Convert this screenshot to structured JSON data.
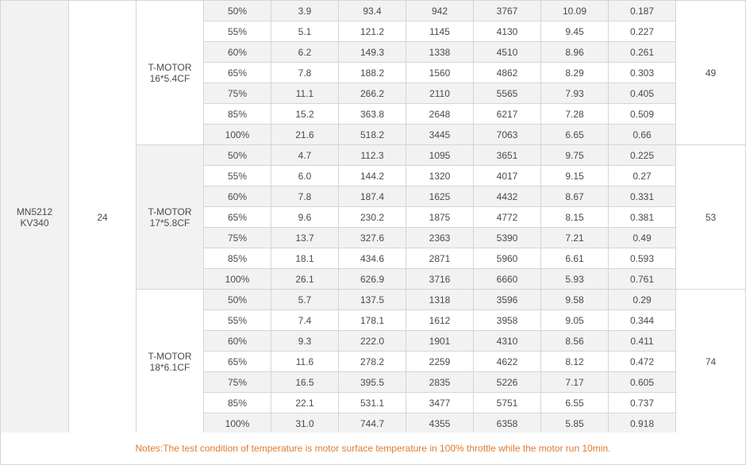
{
  "motor": {
    "name_line1": "MN5212",
    "name_line2": "KV340",
    "voltage": "24"
  },
  "props": [
    {
      "name_line1": "T-MOTOR",
      "name_line2": "16*5.4CF",
      "temperature": "49",
      "rows": [
        [
          "50%",
          "3.9",
          "93.4",
          "942",
          "3767",
          "10.09",
          "0.187"
        ],
        [
          "55%",
          "5.1",
          "121.2",
          "1145",
          "4130",
          "9.45",
          "0.227"
        ],
        [
          "60%",
          "6.2",
          "149.3",
          "1338",
          "4510",
          "8.96",
          "0.261"
        ],
        [
          "65%",
          "7.8",
          "188.2",
          "1560",
          "4862",
          "8.29",
          "0.303"
        ],
        [
          "75%",
          "11.1",
          "266.2",
          "2110",
          "5565",
          "7.93",
          "0.405"
        ],
        [
          "85%",
          "15.2",
          "363.8",
          "2648",
          "6217",
          "7.28",
          "0.509"
        ],
        [
          "100%",
          "21.6",
          "518.2",
          "3445",
          "7063",
          "6.65",
          "0.66"
        ]
      ]
    },
    {
      "name_line1": "T-MOTOR",
      "name_line2": "17*5.8CF",
      "temperature": "53",
      "rows": [
        [
          "50%",
          "4.7",
          "112.3",
          "1095",
          "3651",
          "9.75",
          "0.225"
        ],
        [
          "55%",
          "6.0",
          "144.2",
          "1320",
          "4017",
          "9.15",
          "0.27"
        ],
        [
          "60%",
          "7.8",
          "187.4",
          "1625",
          "4432",
          "8.67",
          "0.331"
        ],
        [
          "65%",
          "9.6",
          "230.2",
          "1875",
          "4772",
          "8.15",
          "0.381"
        ],
        [
          "75%",
          "13.7",
          "327.6",
          "2363",
          "5390",
          "7.21",
          "0.49"
        ],
        [
          "85%",
          "18.1",
          "434.6",
          "2871",
          "5960",
          "6.61",
          "0.593"
        ],
        [
          "100%",
          "26.1",
          "626.9",
          "3716",
          "6660",
          "5.93",
          "0.761"
        ]
      ]
    },
    {
      "name_line1": "T-MOTOR",
      "name_line2": "18*6.1CF",
      "temperature": "74",
      "rows": [
        [
          "50%",
          "5.7",
          "137.5",
          "1318",
          "3596",
          "9.58",
          "0.29"
        ],
        [
          "55%",
          "7.4",
          "178.1",
          "1612",
          "3958",
          "9.05",
          "0.344"
        ],
        [
          "60%",
          "9.3",
          "222.0",
          "1901",
          "4310",
          "8.56",
          "0.411"
        ],
        [
          "65%",
          "11.6",
          "278.2",
          "2259",
          "4622",
          "8.12",
          "0.472"
        ],
        [
          "75%",
          "16.5",
          "395.5",
          "2835",
          "5226",
          "7.17",
          "0.605"
        ],
        [
          "85%",
          "22.1",
          "531.1",
          "3477",
          "5751",
          "6.55",
          "0.737"
        ],
        [
          "100%",
          "31.0",
          "744.7",
          "4355",
          "6358",
          "5.85",
          "0.918"
        ]
      ]
    }
  ],
  "notes": "Notes:The test condition of temperature is motor surface temperature in 100% throttle while the motor run 10min.",
  "colors": {
    "notes_text": "#e07a2d",
    "row_shade": "#f2f2f2",
    "border": "#d5d5d5"
  }
}
